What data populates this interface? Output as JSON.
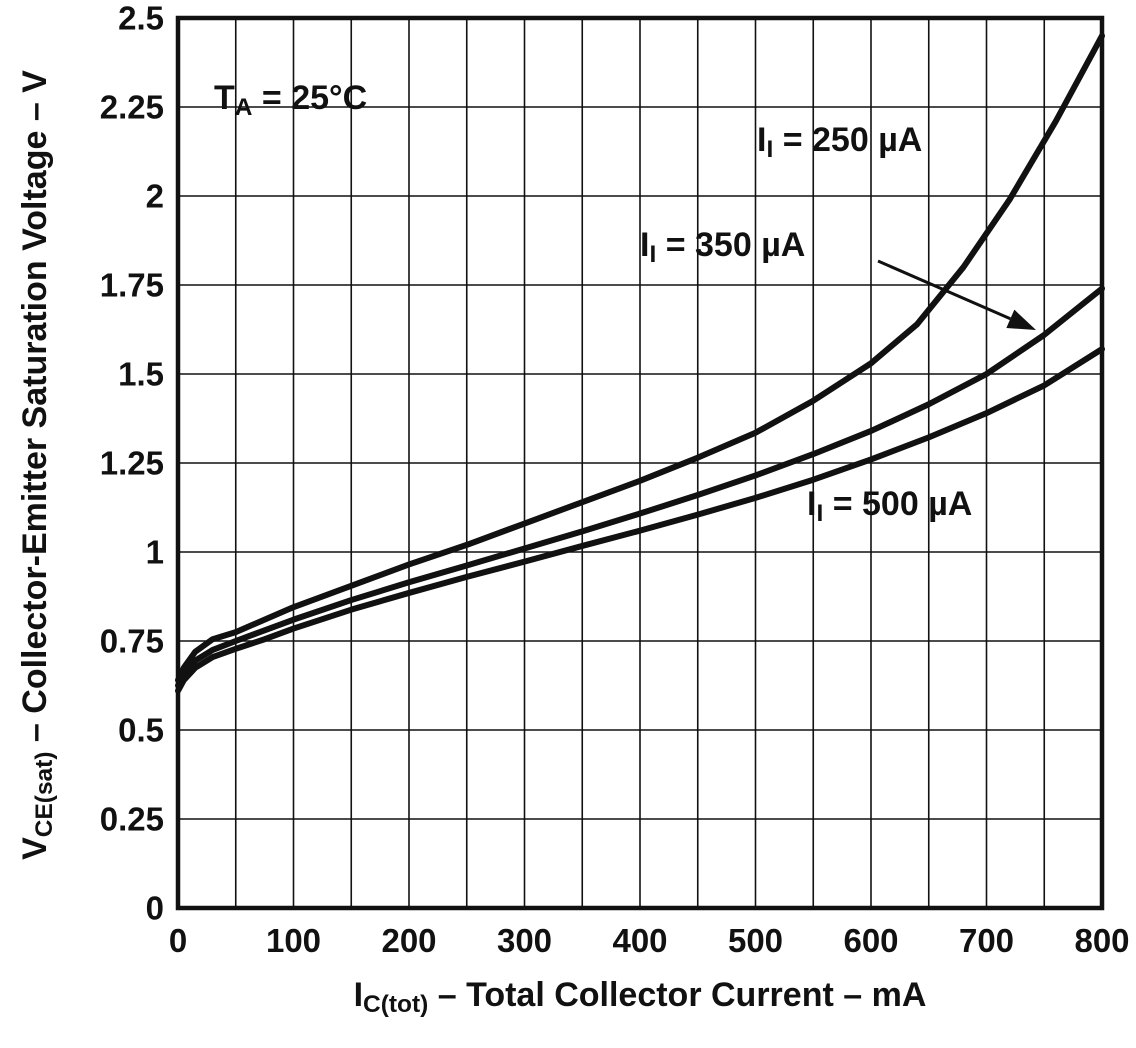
{
  "colors": {
    "line": "#111111",
    "grid": "#111111",
    "text": "#111111",
    "background": "#ffffff"
  },
  "chart_data": {
    "type": "line",
    "title": "",
    "xlabel_parts": {
      "main": "I",
      "sub": "C(tot)",
      "rest": " – Total Collector Current – mA"
    },
    "ylabel_parts": {
      "main": "V",
      "sub": "CE(sat)",
      "rest": " – Collector-Emitter Saturation Voltage – V"
    },
    "annotation_parts": {
      "main": "T",
      "sub": "A",
      "rest": " = 25°C"
    },
    "xlim": [
      0,
      800
    ],
    "ylim": [
      0,
      2.5
    ],
    "x_ticks": [
      "0",
      "100",
      "200",
      "300",
      "400",
      "500",
      "600",
      "700",
      "800"
    ],
    "x_tick_values": [
      0,
      100,
      200,
      300,
      400,
      500,
      600,
      700,
      800
    ],
    "y_ticks": [
      "0",
      "0.25",
      "0.5",
      "0.75",
      "1",
      "1.25",
      "1.5",
      "1.75",
      "2",
      "2.25",
      "2.5"
    ],
    "y_tick_values": [
      0,
      0.25,
      0.5,
      0.75,
      1,
      1.25,
      1.5,
      1.75,
      2,
      2.25,
      2.5
    ],
    "x_grid_step": 50,
    "y_grid_step": 0.25,
    "grid": true,
    "legend_position": "inline-labels",
    "series": [
      {
        "name": "II = 250 uA",
        "label_parts": {
          "main": "I",
          "sub": "I",
          "rest": " = 250 µA"
        },
        "x": [
          0,
          5,
          15,
          30,
          50,
          75,
          100,
          150,
          200,
          250,
          300,
          350,
          400,
          450,
          500,
          550,
          600,
          640,
          680,
          720,
          760,
          800
        ],
        "y": [
          0.64,
          0.675,
          0.72,
          0.755,
          0.775,
          0.81,
          0.845,
          0.905,
          0.965,
          1.02,
          1.08,
          1.14,
          1.2,
          1.265,
          1.335,
          1.425,
          1.53,
          1.64,
          1.8,
          1.99,
          2.21,
          2.45
        ]
      },
      {
        "name": "II = 350 uA",
        "label_parts": {
          "main": "I",
          "sub": "I",
          "rest": " = 350 µA"
        },
        "x": [
          0,
          5,
          15,
          30,
          50,
          75,
          100,
          150,
          200,
          250,
          300,
          350,
          400,
          450,
          500,
          550,
          600,
          650,
          700,
          750,
          800
        ],
        "y": [
          0.625,
          0.655,
          0.695,
          0.725,
          0.75,
          0.78,
          0.81,
          0.865,
          0.915,
          0.962,
          1.01,
          1.058,
          1.108,
          1.16,
          1.215,
          1.275,
          1.34,
          1.415,
          1.5,
          1.61,
          1.74
        ]
      },
      {
        "name": "II = 500 uA",
        "label_parts": {
          "main": "I",
          "sub": "I",
          "rest": " = 500 µA"
        },
        "x": [
          0,
          5,
          15,
          30,
          50,
          75,
          100,
          150,
          200,
          250,
          300,
          350,
          400,
          450,
          500,
          550,
          600,
          650,
          700,
          750,
          800
        ],
        "y": [
          0.61,
          0.64,
          0.675,
          0.705,
          0.728,
          0.755,
          0.785,
          0.838,
          0.885,
          0.93,
          0.973,
          1.017,
          1.06,
          1.105,
          1.152,
          1.203,
          1.26,
          1.322,
          1.39,
          1.468,
          1.57
        ]
      }
    ]
  }
}
